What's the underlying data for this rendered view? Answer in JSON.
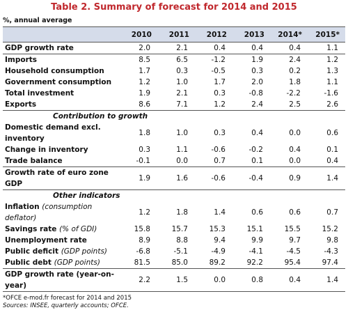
{
  "title": "Table 2. Summary of forecast for 2014 and 2015",
  "unit_note": "%, annual average",
  "columns": [
    "2010",
    "2011",
    "2012",
    "2013",
    "2014*",
    "2015*"
  ],
  "groups": [
    {
      "rows": [
        {
          "label": "GDP growth rate",
          "values": [
            "2.0",
            "2.1",
            "0.4",
            "0.4",
            "0.4",
            "1.1"
          ]
        }
      ]
    },
    {
      "rows": [
        {
          "label": "Imports",
          "values": [
            "8.5",
            "6.5",
            "-1.2",
            "1.9",
            "2.4",
            "1.2"
          ]
        },
        {
          "label": "Household consumption",
          "values": [
            "1.7",
            "0.3",
            "-0.5",
            "0.3",
            "0.2",
            "1.3"
          ]
        },
        {
          "label": "Government consumption",
          "values": [
            "1.2",
            "1.0",
            "1.7",
            "2.0",
            "1.8",
            "1.1"
          ]
        },
        {
          "label": "Total investment",
          "values": [
            "1.9",
            "2.1",
            "0.3",
            "-0.8",
            "-2.2",
            "-1.6"
          ]
        },
        {
          "label": "Exports",
          "values": [
            "8.6",
            "7.1",
            "1.2",
            "2.4",
            "2.5",
            "2.6"
          ]
        }
      ]
    },
    {
      "heading": "Contribution to growth",
      "rows": [
        {
          "label": "Domestic demand excl. inventory",
          "values": [
            "1.8",
            "1.0",
            "0.3",
            "0.4",
            "0.0",
            "0.6"
          ]
        },
        {
          "label": "Change in inventory",
          "values": [
            "0.3",
            "1.1",
            "-0.6",
            "-0.2",
            "0.4",
            "0.1"
          ]
        },
        {
          "label": "Trade balance",
          "values": [
            "-0.1",
            "0.0",
            "0.7",
            "0.1",
            "0.0",
            "0.4"
          ]
        }
      ]
    },
    {
      "rows": [
        {
          "label": "Growth rate of euro zone GDP",
          "values": [
            "1.9",
            "1.6",
            "-0.6",
            "-0.4",
            "0.9",
            "1.4"
          ]
        }
      ]
    },
    {
      "heading": "Other indicators",
      "rows": [
        {
          "label": "Inflation",
          "note": "(consumption deflator)",
          "values": [
            "1.2",
            "1.8",
            "1.4",
            "0.6",
            "0.6",
            "0.7"
          ]
        },
        {
          "label": "Savings rate",
          "note": "(% of GDI)",
          "values": [
            "15.8",
            "15.7",
            "15.3",
            "15.1",
            "15.5",
            "15.2"
          ]
        },
        {
          "label": "Unemployment rate",
          "values": [
            "8.9",
            "8.8",
            "9.4",
            "9.9",
            "9.7",
            "9.8"
          ]
        },
        {
          "label": "Public deficit",
          "note": "(GDP points)",
          "values": [
            "-6.8",
            "-5.1",
            "-4.9",
            "-4.1",
            "-4.5",
            "-4.3"
          ]
        },
        {
          "label": "Public debt",
          "note": "(GDP points)",
          "values": [
            "81.5",
            "85.0",
            "89.2",
            "92.2",
            "95.4",
            "97.4"
          ]
        }
      ]
    },
    {
      "rows": [
        {
          "label": "GDP growth rate (year-on-year)",
          "values": [
            "2.2",
            "1.5",
            "0.0",
            "0.8",
            "0.4",
            "1.4"
          ]
        }
      ]
    }
  ],
  "footnotes": [
    "*OFCE e-mod.fr forecast for 2014 and 2015",
    "Sources: INSEE, quarterly accounts; OFCE."
  ]
}
